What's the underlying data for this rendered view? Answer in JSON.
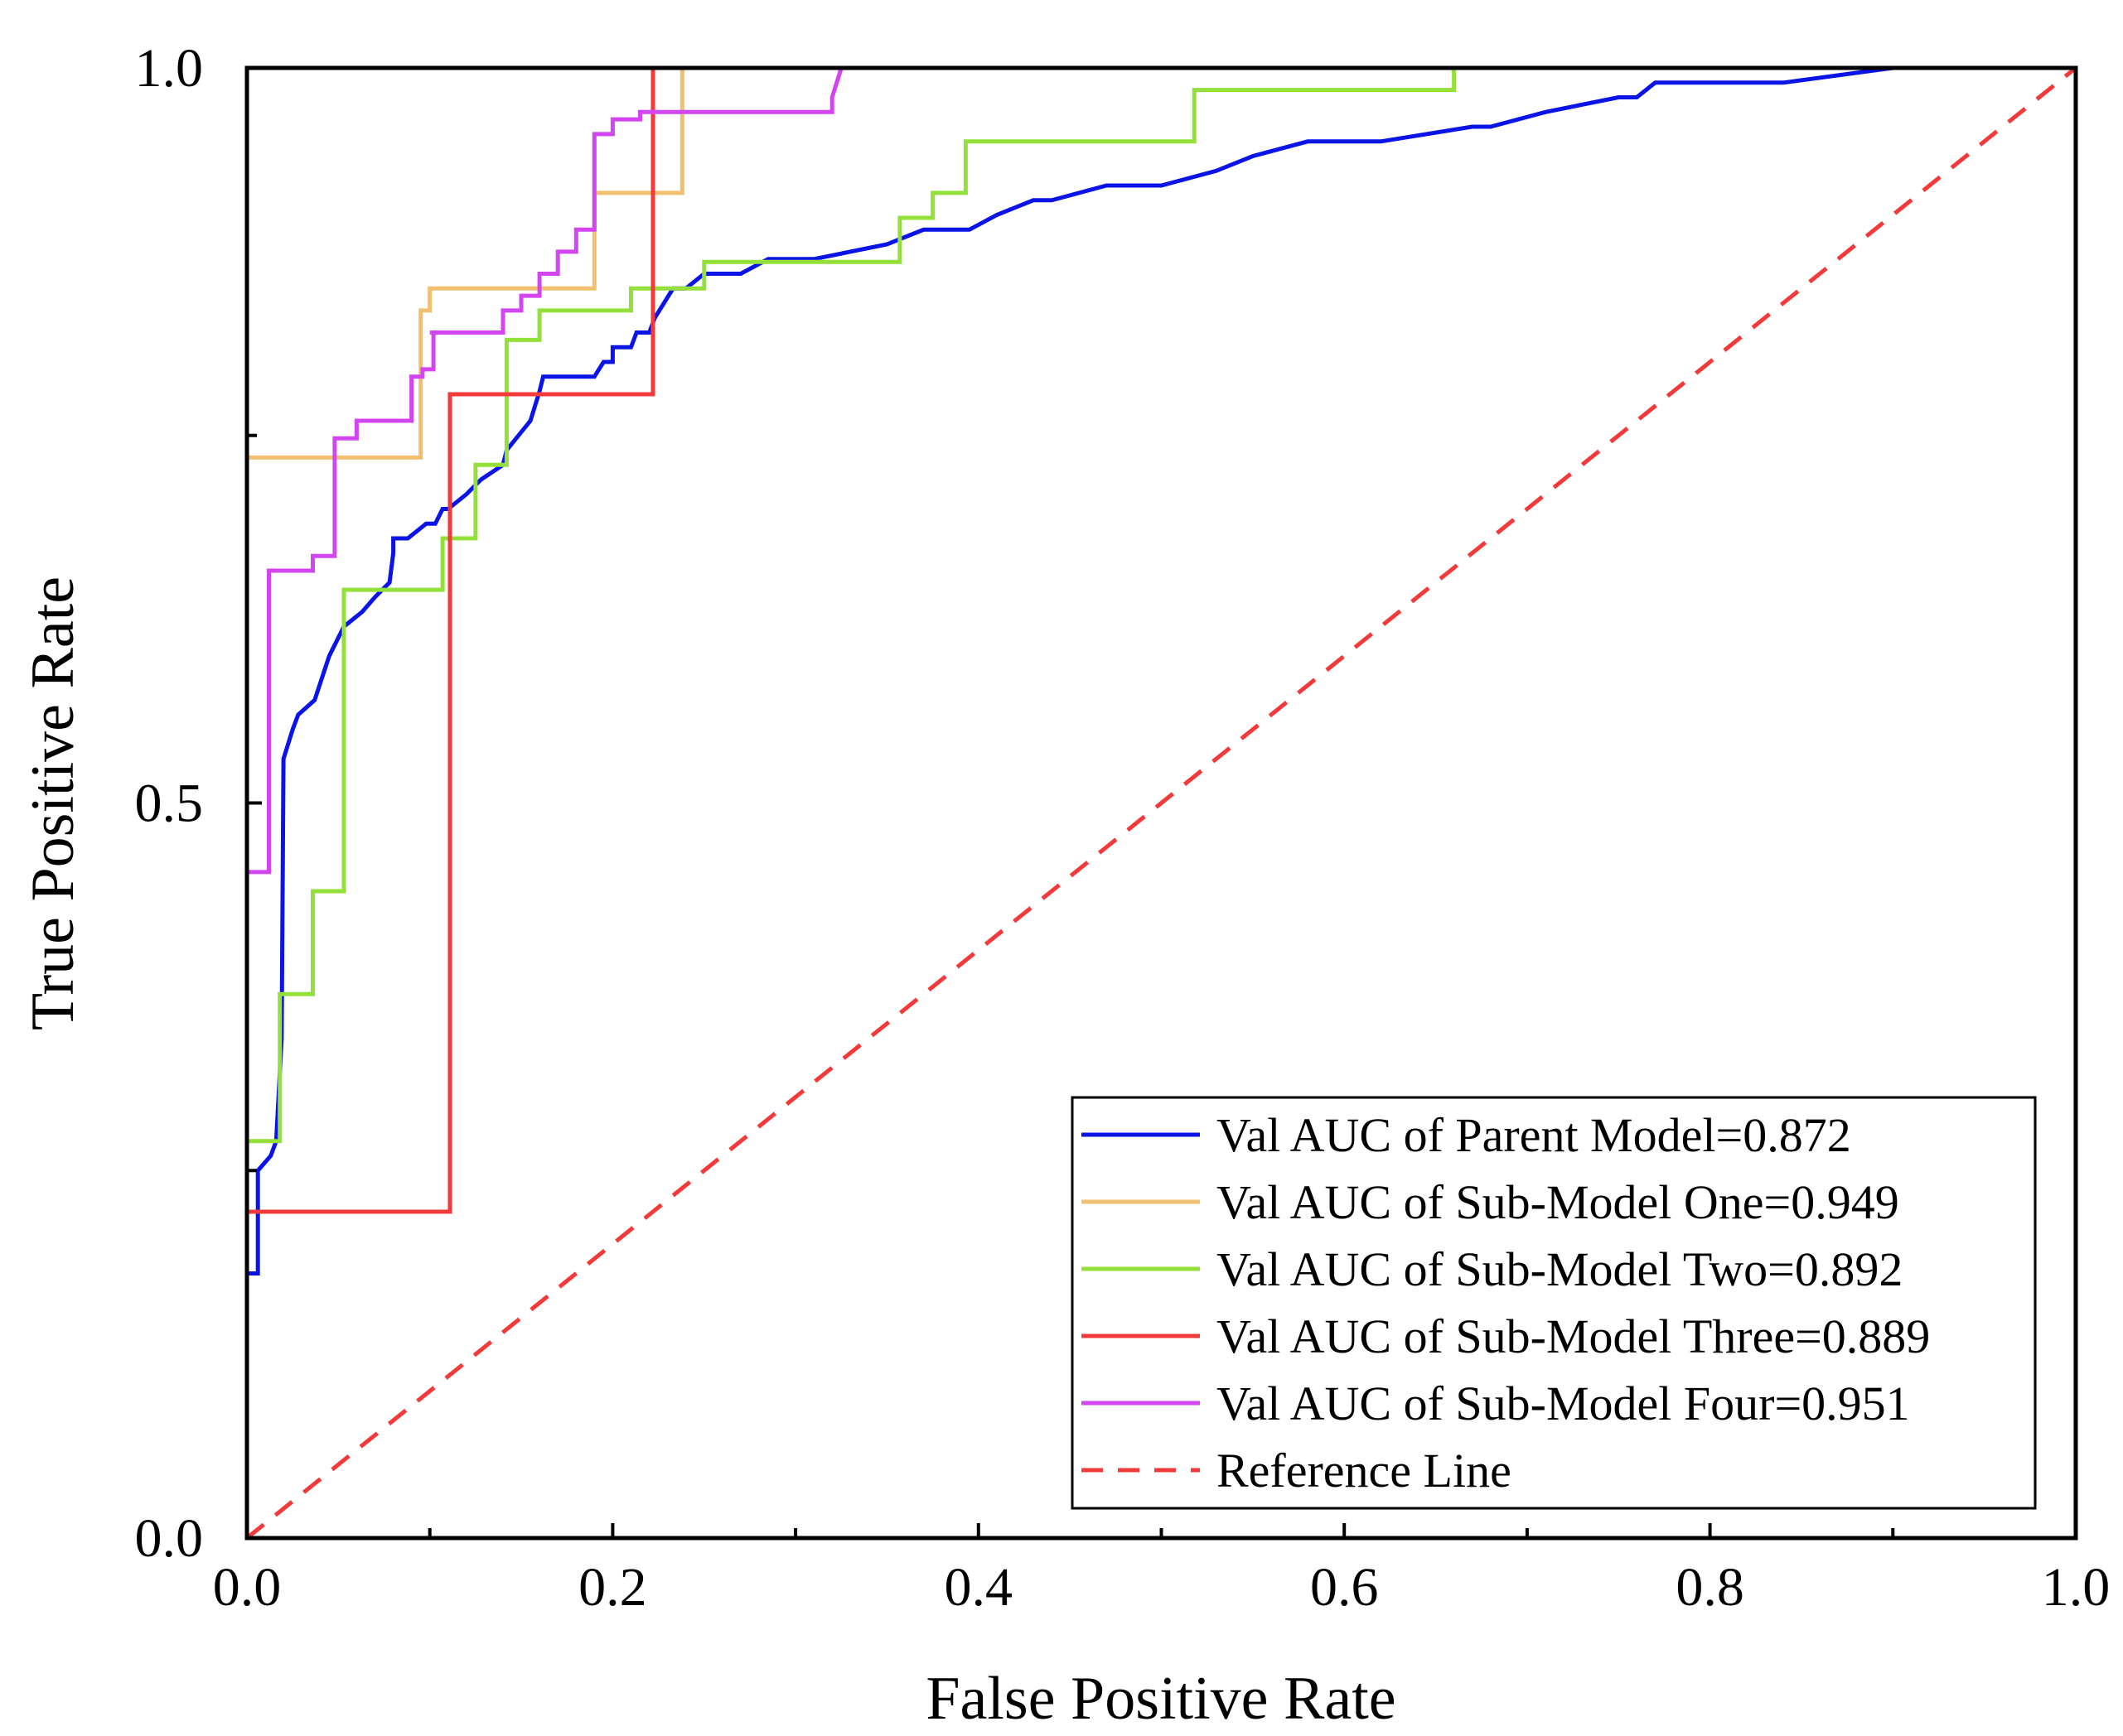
{
  "chart_data": {
    "type": "line",
    "title": "",
    "xlabel": "False Positive Rate",
    "ylabel": "True Positive Rate",
    "xlim": [
      0.0,
      1.0
    ],
    "ylim": [
      0.0,
      1.0
    ],
    "x_ticks": [
      "0.0",
      "0.2",
      "0.4",
      "0.6",
      "0.8",
      "1.0"
    ],
    "y_ticks": [
      "0.0",
      "0.5",
      "1.0"
    ],
    "grid": false,
    "legend_position": "bottom-right",
    "series": [
      {
        "name": "Val AUC of Parent Model=0.872",
        "color": "#0a14e6",
        "dash": "solid",
        "x": [
          0.0,
          0.006,
          0.006,
          0.013,
          0.016,
          0.019,
          0.02,
          0.025,
          0.028,
          0.037,
          0.045,
          0.053,
          0.063,
          0.07,
          0.078,
          0.08,
          0.08,
          0.088,
          0.098,
          0.103,
          0.107,
          0.11,
          0.12,
          0.128,
          0.14,
          0.142,
          0.155,
          0.16,
          0.162,
          0.168,
          0.19,
          0.195,
          0.2,
          0.2,
          0.21,
          0.213,
          0.22,
          0.223,
          0.233,
          0.24,
          0.25,
          0.27,
          0.285,
          0.31,
          0.35,
          0.37,
          0.395,
          0.41,
          0.43,
          0.44,
          0.47,
          0.5,
          0.53,
          0.55,
          0.58,
          0.62,
          0.67,
          0.68,
          0.71,
          0.75,
          0.76,
          0.77,
          0.78,
          0.84,
          0.9
        ],
        "y": [
          0.18,
          0.18,
          0.25,
          0.26,
          0.27,
          0.34,
          0.53,
          0.55,
          0.56,
          0.57,
          0.6,
          0.62,
          0.63,
          0.64,
          0.65,
          0.67,
          0.68,
          0.68,
          0.69,
          0.69,
          0.7,
          0.7,
          0.71,
          0.72,
          0.73,
          0.74,
          0.76,
          0.78,
          0.79,
          0.79,
          0.79,
          0.8,
          0.8,
          0.81,
          0.81,
          0.82,
          0.82,
          0.83,
          0.85,
          0.85,
          0.86,
          0.86,
          0.87,
          0.87,
          0.88,
          0.89,
          0.89,
          0.9,
          0.91,
          0.91,
          0.92,
          0.92,
          0.93,
          0.94,
          0.95,
          0.95,
          0.96,
          0.96,
          0.97,
          0.98,
          0.98,
          0.99,
          0.99,
          0.99,
          1.0
        ]
      },
      {
        "name": "Val AUC of Sub-Model One=0.949",
        "color": "#f0c070",
        "dash": "solid",
        "x": [
          0.0,
          0.095,
          0.095,
          0.1,
          0.1,
          0.19,
          0.19,
          0.238,
          0.238,
          0.24
        ],
        "y": [
          0.735,
          0.735,
          0.835,
          0.835,
          0.85,
          0.85,
          0.915,
          0.915,
          1.0,
          1.0
        ],
        "x_end": 0.24
      },
      {
        "name": "Val AUC of Sub-Model Two=0.892",
        "color": "#94e03a",
        "dash": "solid",
        "x": [
          0.0,
          0.018,
          0.018,
          0.036,
          0.036,
          0.053,
          0.053,
          0.107,
          0.107,
          0.125,
          0.125,
          0.142,
          0.142,
          0.16,
          0.16,
          0.21,
          0.21,
          0.25,
          0.25,
          0.357,
          0.357,
          0.375,
          0.375,
          0.393,
          0.393,
          0.518,
          0.518,
          0.66,
          0.66
        ],
        "y": [
          0.27,
          0.27,
          0.37,
          0.37,
          0.44,
          0.44,
          0.645,
          0.645,
          0.68,
          0.68,
          0.73,
          0.73,
          0.815,
          0.815,
          0.835,
          0.835,
          0.85,
          0.85,
          0.868,
          0.868,
          0.898,
          0.898,
          0.915,
          0.915,
          0.95,
          0.95,
          0.985,
          0.985,
          1.0
        ]
      },
      {
        "name": "Val AUC of Sub-Model Three=0.889",
        "color": "#f23a3a",
        "dash": "solid",
        "x": [
          0.0,
          0.111,
          0.111,
          0.222,
          0.222
        ],
        "y": [
          0.222,
          0.222,
          0.778,
          0.778,
          1.0
        ]
      },
      {
        "name": "Val AUC of Sub-Model Four=0.951",
        "color": "#d445f2",
        "dash": "solid",
        "x": [
          0.0,
          0.012,
          0.012,
          0.036,
          0.036,
          0.048,
          0.048,
          0.06,
          0.06,
          0.072,
          0.072,
          0.09,
          0.09,
          0.096,
          0.096,
          0.102,
          0.102,
          0.1,
          0.1,
          0.14,
          0.14,
          0.15,
          0.15,
          0.16,
          0.16,
          0.17,
          0.17,
          0.18,
          0.18,
          0.19,
          0.19,
          0.2,
          0.2,
          0.215,
          0.215,
          0.32,
          0.32,
          0.325
        ],
        "y": [
          0.453,
          0.453,
          0.658,
          0.658,
          0.668,
          0.668,
          0.748,
          0.748,
          0.76,
          0.76,
          0.76,
          0.76,
          0.79,
          0.79,
          0.795,
          0.795,
          0.82,
          0.82,
          0.82,
          0.82,
          0.835,
          0.835,
          0.845,
          0.845,
          0.86,
          0.86,
          0.875,
          0.875,
          0.89,
          0.89,
          0.955,
          0.955,
          0.965,
          0.965,
          0.97,
          0.97,
          0.98,
          1.0
        ]
      },
      {
        "name": "Reference Line",
        "color": "#f23a3a",
        "dash": "dashed",
        "x": [
          0.0,
          1.0
        ],
        "y": [
          0.0,
          1.0
        ]
      }
    ]
  }
}
